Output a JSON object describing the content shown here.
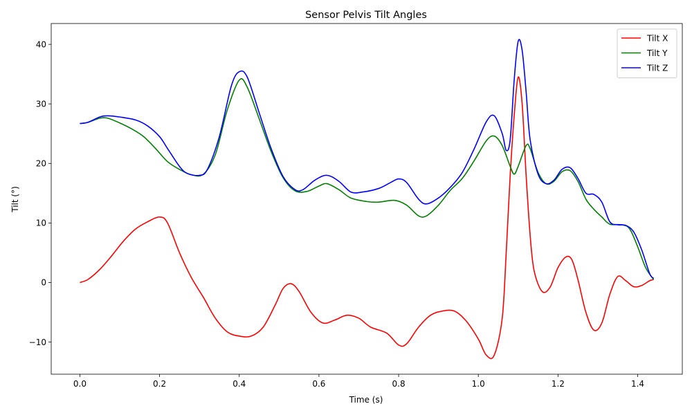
{
  "chart_data": {
    "type": "line",
    "title": "Sensor Pelvis Tilt Angles",
    "xlabel": "Time (s)",
    "ylabel": "Tilt (°)",
    "xlim": [
      -0.072,
      1.512
    ],
    "ylim": [
      -15.4,
      43.5
    ],
    "xticks": [
      0.0,
      0.2,
      0.4,
      0.6,
      0.8,
      1.0,
      1.2,
      1.4
    ],
    "xtick_labels": [
      "0.0",
      "0.2",
      "0.4",
      "0.6",
      "0.8",
      "1.0",
      "1.2",
      "1.4"
    ],
    "yticks": [
      -10,
      0,
      10,
      20,
      30,
      40
    ],
    "ytick_labels": [
      "−10",
      "0",
      "10",
      "20",
      "30",
      "40"
    ],
    "grid": false,
    "legend_position": "top-right",
    "series": [
      {
        "name": "Tilt X",
        "color": "#ff0000",
        "points": [
          [
            0.0,
            0.0
          ],
          [
            0.02,
            0.5
          ],
          [
            0.05,
            2.2
          ],
          [
            0.08,
            4.5
          ],
          [
            0.11,
            7.0
          ],
          [
            0.14,
            9.0
          ],
          [
            0.17,
            10.2
          ],
          [
            0.2,
            11.0
          ],
          [
            0.22,
            10.0
          ],
          [
            0.25,
            5.0
          ],
          [
            0.28,
            0.8
          ],
          [
            0.31,
            -2.5
          ],
          [
            0.34,
            -6.0
          ],
          [
            0.37,
            -8.3
          ],
          [
            0.4,
            -9.0
          ],
          [
            0.43,
            -9.0
          ],
          [
            0.46,
            -7.5
          ],
          [
            0.49,
            -3.8
          ],
          [
            0.51,
            -1.0
          ],
          [
            0.53,
            -0.2
          ],
          [
            0.55,
            -1.5
          ],
          [
            0.58,
            -5.0
          ],
          [
            0.61,
            -6.8
          ],
          [
            0.64,
            -6.3
          ],
          [
            0.67,
            -5.5
          ],
          [
            0.7,
            -6.0
          ],
          [
            0.73,
            -7.5
          ],
          [
            0.77,
            -8.5
          ],
          [
            0.8,
            -10.5
          ],
          [
            0.82,
            -10.3
          ],
          [
            0.85,
            -7.5
          ],
          [
            0.88,
            -5.5
          ],
          [
            0.91,
            -4.8
          ],
          [
            0.94,
            -4.8
          ],
          [
            0.97,
            -6.5
          ],
          [
            1.0,
            -9.5
          ],
          [
            1.02,
            -12.2
          ],
          [
            1.04,
            -12.2
          ],
          [
            1.06,
            -6.0
          ],
          [
            1.07,
            5.0
          ],
          [
            1.08,
            18.0
          ],
          [
            1.09,
            28.0
          ],
          [
            1.1,
            34.5
          ],
          [
            1.11,
            30.0
          ],
          [
            1.12,
            18.0
          ],
          [
            1.13,
            8.0
          ],
          [
            1.14,
            2.0
          ],
          [
            1.16,
            -1.5
          ],
          [
            1.18,
            -0.8
          ],
          [
            1.2,
            2.5
          ],
          [
            1.22,
            4.3
          ],
          [
            1.235,
            3.8
          ],
          [
            1.25,
            0.5
          ],
          [
            1.27,
            -5.0
          ],
          [
            1.29,
            -8.0
          ],
          [
            1.31,
            -6.8
          ],
          [
            1.33,
            -2.0
          ],
          [
            1.35,
            1.0
          ],
          [
            1.37,
            0.3
          ],
          [
            1.39,
            -0.7
          ],
          [
            1.41,
            -0.5
          ],
          [
            1.43,
            0.3
          ],
          [
            1.44,
            0.5
          ]
        ]
      },
      {
        "name": "Tilt Y",
        "color": "#008000",
        "points": [
          [
            0.0,
            26.7
          ],
          [
            0.02,
            26.9
          ],
          [
            0.05,
            27.6
          ],
          [
            0.07,
            27.6
          ],
          [
            0.1,
            26.8
          ],
          [
            0.13,
            25.8
          ],
          [
            0.16,
            24.5
          ],
          [
            0.19,
            22.5
          ],
          [
            0.22,
            20.3
          ],
          [
            0.25,
            19.0
          ],
          [
            0.28,
            18.1
          ],
          [
            0.31,
            18.2
          ],
          [
            0.34,
            21.5
          ],
          [
            0.37,
            29.0
          ],
          [
            0.4,
            34.0
          ],
          [
            0.42,
            32.8
          ],
          [
            0.45,
            27.5
          ],
          [
            0.48,
            22.0
          ],
          [
            0.51,
            17.6
          ],
          [
            0.54,
            15.4
          ],
          [
            0.57,
            15.3
          ],
          [
            0.6,
            16.2
          ],
          [
            0.62,
            16.6
          ],
          [
            0.65,
            15.6
          ],
          [
            0.68,
            14.2
          ],
          [
            0.72,
            13.6
          ],
          [
            0.75,
            13.5
          ],
          [
            0.79,
            13.8
          ],
          [
            0.82,
            13.0
          ],
          [
            0.85,
            11.2
          ],
          [
            0.87,
            11.2
          ],
          [
            0.9,
            13.0
          ],
          [
            0.93,
            15.5
          ],
          [
            0.96,
            17.5
          ],
          [
            0.99,
            20.5
          ],
          [
            1.02,
            23.8
          ],
          [
            1.04,
            24.6
          ],
          [
            1.06,
            23.0
          ],
          [
            1.08,
            19.5
          ],
          [
            1.09,
            18.2
          ],
          [
            1.1,
            19.5
          ],
          [
            1.12,
            23.0
          ],
          [
            1.13,
            22.5
          ],
          [
            1.15,
            18.5
          ],
          [
            1.17,
            16.6
          ],
          [
            1.19,
            17.0
          ],
          [
            1.21,
            18.6
          ],
          [
            1.23,
            18.8
          ],
          [
            1.25,
            17.0
          ],
          [
            1.27,
            14.0
          ],
          [
            1.29,
            12.3
          ],
          [
            1.31,
            11.0
          ],
          [
            1.33,
            9.8
          ],
          [
            1.36,
            9.7
          ],
          [
            1.38,
            9.0
          ],
          [
            1.4,
            6.0
          ],
          [
            1.42,
            2.5
          ],
          [
            1.44,
            0.5
          ]
        ]
      },
      {
        "name": "Tilt Z",
        "color": "#0000ff",
        "points": [
          [
            0.0,
            26.7
          ],
          [
            0.02,
            26.9
          ],
          [
            0.05,
            27.8
          ],
          [
            0.07,
            28.0
          ],
          [
            0.1,
            27.8
          ],
          [
            0.14,
            27.3
          ],
          [
            0.17,
            26.3
          ],
          [
            0.2,
            24.5
          ],
          [
            0.22,
            22.5
          ],
          [
            0.25,
            19.5
          ],
          [
            0.27,
            18.3
          ],
          [
            0.3,
            18.0
          ],
          [
            0.32,
            19.0
          ],
          [
            0.35,
            24.5
          ],
          [
            0.38,
            33.0
          ],
          [
            0.4,
            35.4
          ],
          [
            0.42,
            34.5
          ],
          [
            0.45,
            28.5
          ],
          [
            0.48,
            22.5
          ],
          [
            0.51,
            17.8
          ],
          [
            0.54,
            15.6
          ],
          [
            0.56,
            15.6
          ],
          [
            0.59,
            17.2
          ],
          [
            0.62,
            18.0
          ],
          [
            0.65,
            17.0
          ],
          [
            0.68,
            15.2
          ],
          [
            0.71,
            15.2
          ],
          [
            0.75,
            15.8
          ],
          [
            0.78,
            16.8
          ],
          [
            0.8,
            17.4
          ],
          [
            0.82,
            16.8
          ],
          [
            0.85,
            14.0
          ],
          [
            0.87,
            13.2
          ],
          [
            0.9,
            14.2
          ],
          [
            0.93,
            16.0
          ],
          [
            0.96,
            18.5
          ],
          [
            0.99,
            22.5
          ],
          [
            1.02,
            27.0
          ],
          [
            1.04,
            28.0
          ],
          [
            1.06,
            25.0
          ],
          [
            1.07,
            22.2
          ],
          [
            1.08,
            24.0
          ],
          [
            1.09,
            34.0
          ],
          [
            1.1,
            40.5
          ],
          [
            1.11,
            39.0
          ],
          [
            1.12,
            32.0
          ],
          [
            1.13,
            24.0
          ],
          [
            1.15,
            18.2
          ],
          [
            1.17,
            16.6
          ],
          [
            1.19,
            17.2
          ],
          [
            1.21,
            19.0
          ],
          [
            1.23,
            19.3
          ],
          [
            1.25,
            17.5
          ],
          [
            1.27,
            15.0
          ],
          [
            1.29,
            14.8
          ],
          [
            1.31,
            13.5
          ],
          [
            1.33,
            10.2
          ],
          [
            1.35,
            9.7
          ],
          [
            1.37,
            9.6
          ],
          [
            1.39,
            8.5
          ],
          [
            1.41,
            5.5
          ],
          [
            1.43,
            1.5
          ],
          [
            1.44,
            0.7
          ]
        ]
      }
    ]
  }
}
